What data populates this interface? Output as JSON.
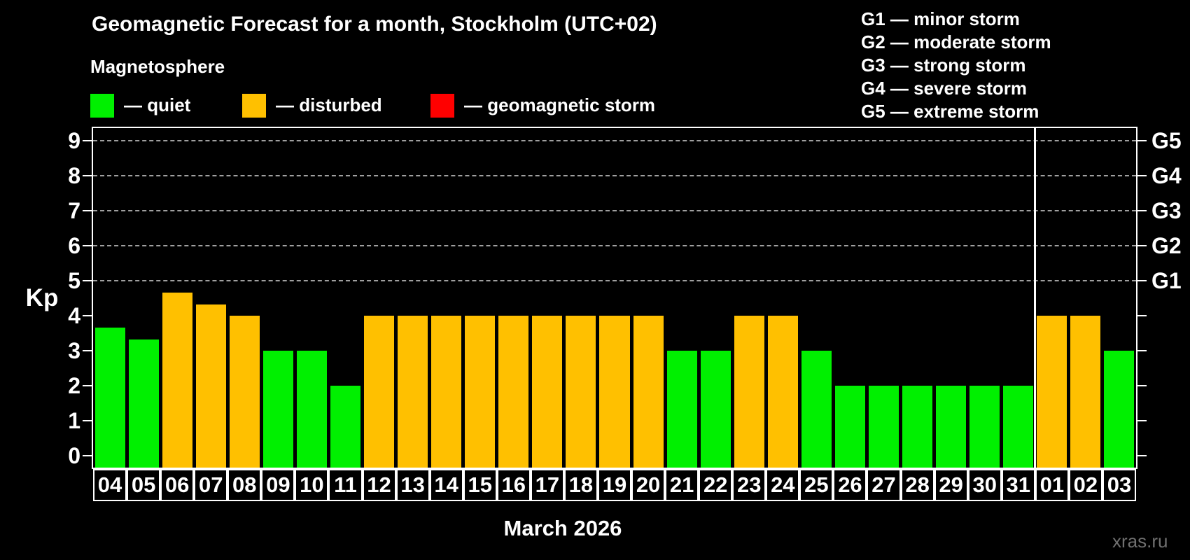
{
  "title": "Geomagnetic Forecast for a month, Stockholm (UTC+02)",
  "subtitle": "Magnetosphere",
  "watermark": "xras.ru",
  "colors": {
    "quiet": "#00f000",
    "disturbed": "#ffc000",
    "storm": "#ff0000",
    "grid": "#a0a0a0",
    "axis": "#ffffff",
    "background": "#000000",
    "watermark": "#707070"
  },
  "legend": {
    "items": [
      {
        "key": "quiet",
        "label": "— quiet",
        "color": "#00f000"
      },
      {
        "key": "disturbed",
        "label": "— disturbed",
        "color": "#ffc000"
      },
      {
        "key": "storm",
        "label": "— geomagnetic storm",
        "color": "#ff0000"
      }
    ]
  },
  "g_legend": [
    "G1 — minor storm",
    "G2 — moderate storm",
    "G3 — strong storm",
    "G4 — severe storm",
    "G5 — extreme storm"
  ],
  "chart_data": {
    "type": "bar",
    "title": "Geomagnetic Forecast for a month, Stockholm (UTC+02)",
    "ylabel": "Kp",
    "xlabel": "March 2026",
    "ylim": [
      -0.34,
      9.36
    ],
    "y_ticks": [
      0,
      1,
      2,
      3,
      4,
      5,
      6,
      7,
      8,
      9
    ],
    "gridline_levels": [
      5,
      6,
      7,
      8,
      9
    ],
    "right_axis_labels": [
      {
        "label": "G1",
        "kp": 5
      },
      {
        "label": "G2",
        "kp": 6
      },
      {
        "label": "G3",
        "kp": 7
      },
      {
        "label": "G4",
        "kp": 8
      },
      {
        "label": "G5",
        "kp": 9
      }
    ],
    "month_divider_index": 28,
    "categories": [
      "04",
      "05",
      "06",
      "07",
      "08",
      "09",
      "10",
      "11",
      "12",
      "13",
      "14",
      "15",
      "16",
      "17",
      "18",
      "19",
      "20",
      "21",
      "22",
      "23",
      "24",
      "25",
      "26",
      "27",
      "28",
      "29",
      "30",
      "31",
      "01",
      "02",
      "03"
    ],
    "values": [
      3.67,
      3.33,
      4.67,
      4.33,
      4,
      3,
      3,
      2,
      4,
      4,
      4,
      4,
      4,
      4,
      4,
      4,
      4,
      3,
      3,
      4,
      4,
      3,
      2,
      2,
      2,
      2,
      2,
      2,
      4,
      4,
      3
    ],
    "statuses": [
      "quiet",
      "quiet",
      "disturbed",
      "disturbed",
      "disturbed",
      "quiet",
      "quiet",
      "quiet",
      "disturbed",
      "disturbed",
      "disturbed",
      "disturbed",
      "disturbed",
      "disturbed",
      "disturbed",
      "disturbed",
      "disturbed",
      "quiet",
      "quiet",
      "disturbed",
      "disturbed",
      "quiet",
      "quiet",
      "quiet",
      "quiet",
      "quiet",
      "quiet",
      "quiet",
      "disturbed",
      "disturbed",
      "quiet"
    ]
  }
}
